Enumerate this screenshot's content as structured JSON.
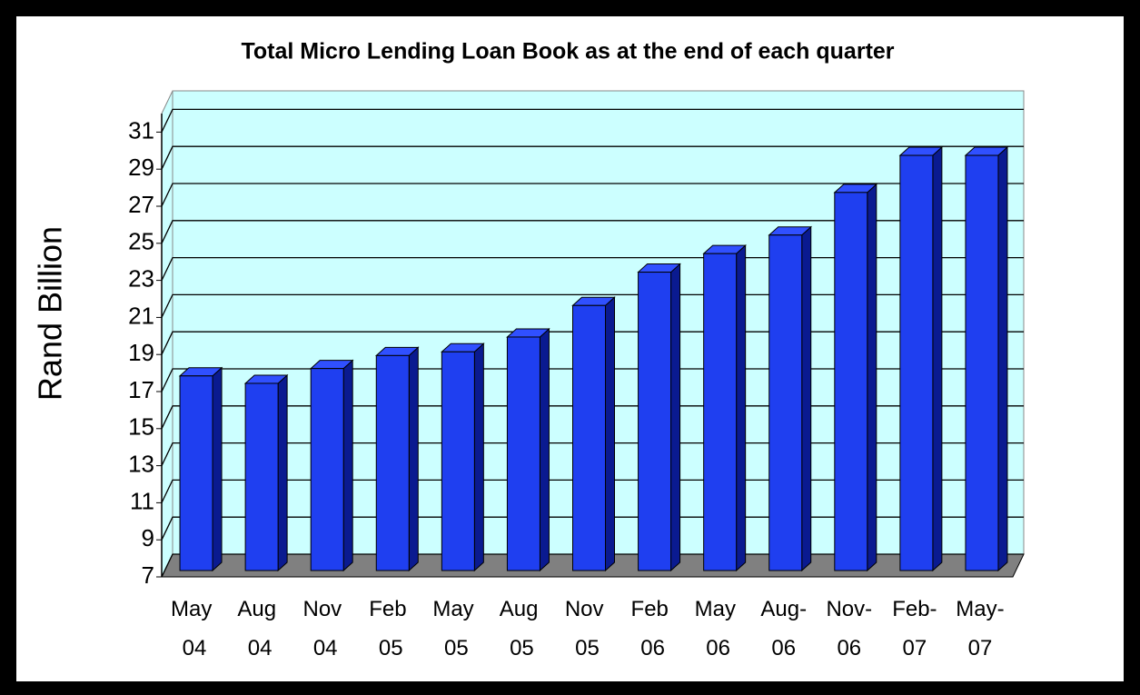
{
  "chart_data": {
    "type": "bar3d",
    "title": "Total Micro Lending Loan Book as at the end of each quarter",
    "y_label": "Rand Billion",
    "categories": [
      "May 04",
      "Aug 04",
      "Nov 04",
      "Feb 05",
      "May 05",
      "Aug 05",
      "Nov 05",
      "Feb 06",
      "May 06",
      "Aug-06",
      "Nov-06",
      "Feb-07",
      "May-07"
    ],
    "values": [
      17.5,
      17.1,
      17.9,
      18.6,
      18.8,
      19.6,
      21.3,
      23.1,
      24.1,
      25.1,
      27.4,
      29.4,
      29.4
    ],
    "color": "#1f3ff0",
    "ylim": [
      7,
      32
    ],
    "yticks": [
      7,
      9,
      11,
      13,
      15,
      17,
      19,
      21,
      23,
      25,
      27,
      29,
      31
    ],
    "grid": true
  }
}
